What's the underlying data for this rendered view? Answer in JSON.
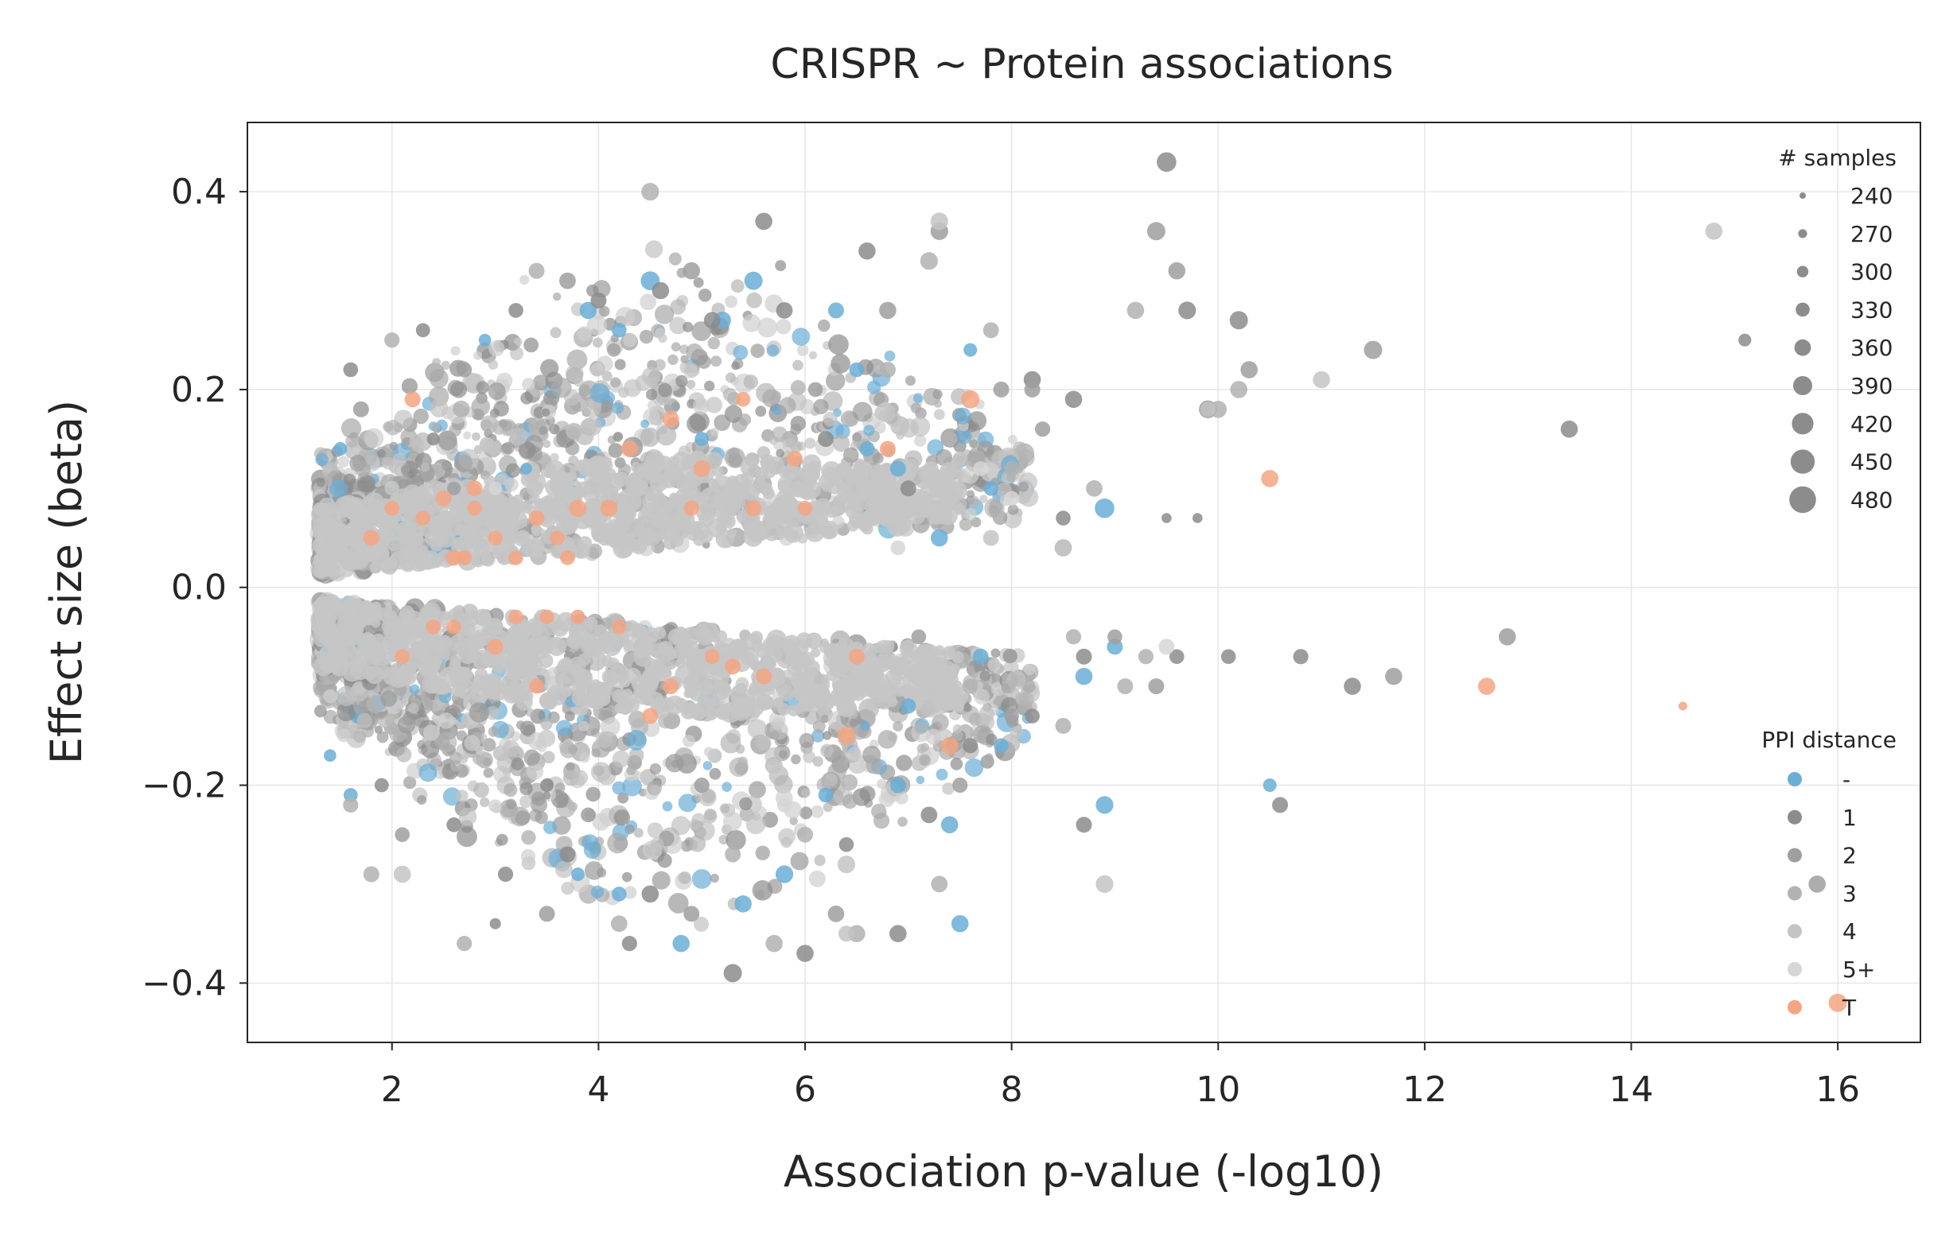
{
  "chart_data": {
    "type": "scatter",
    "title": "CRISPR ~ Protein associations",
    "xlabel": "Association p-value (-log10)",
    "ylabel": "Effect size (beta)",
    "xlim": [
      0.6,
      16.8
    ],
    "ylim": [
      -0.46,
      0.47
    ],
    "x_ticks": [
      2,
      4,
      6,
      8,
      10,
      12,
      14,
      16
    ],
    "y_ticks": [
      -0.4,
      -0.2,
      0.0,
      0.2,
      0.4
    ],
    "x_tick_labels": [
      "2",
      "4",
      "6",
      "8",
      "10",
      "12",
      "14",
      "16"
    ],
    "y_tick_labels": [
      "−0.4",
      "−0.2",
      "0.0",
      "0.2",
      "0.4"
    ],
    "grid": true,
    "size_legend": {
      "title": "# samples",
      "placement": "top-right",
      "entries": [
        {
          "label": "240",
          "value": 240
        },
        {
          "label": "270",
          "value": 270
        },
        {
          "label": "300",
          "value": 300
        },
        {
          "label": "330",
          "value": 330
        },
        {
          "label": "360",
          "value": 360
        },
        {
          "label": "390",
          "value": 390
        },
        {
          "label": "420",
          "value": 420
        },
        {
          "label": "450",
          "value": 450
        },
        {
          "label": "480",
          "value": 480
        }
      ]
    },
    "color_legend": {
      "title": "PPI distance",
      "placement": "bottom-right",
      "entries": [
        {
          "label": "-",
          "color": "#6aaed6"
        },
        {
          "label": "1",
          "color": "#8c8c8c"
        },
        {
          "label": "2",
          "color": "#9f9f9f"
        },
        {
          "label": "3",
          "color": "#b2b2b2"
        },
        {
          "label": "4",
          "color": "#c4c4c4"
        },
        {
          "label": "5+",
          "color": "#d6d6d6"
        },
        {
          "label": "T",
          "color": "#f4a582"
        }
      ]
    },
    "series": [
      {
        "name": "-",
        "color": "#6aaed6",
        "points": [
          [
            3.9,
            0.28,
            420
          ],
          [
            4.5,
            0.31,
            450
          ],
          [
            5.5,
            0.31,
            440
          ],
          [
            6.3,
            0.28,
            400
          ],
          [
            7.6,
            0.24,
            360
          ],
          [
            4.2,
            0.26,
            380
          ],
          [
            2.9,
            0.25,
            340
          ],
          [
            3.3,
            0.12,
            330
          ],
          [
            5.0,
            0.15,
            370
          ],
          [
            6.6,
            0.14,
            390
          ],
          [
            7.3,
            0.05,
            420
          ],
          [
            8.9,
            0.08,
            460
          ],
          [
            9.0,
            -0.06,
            400
          ],
          [
            8.7,
            -0.09,
            420
          ],
          [
            8.9,
            -0.22,
            430
          ],
          [
            10.5,
            -0.2,
            360
          ],
          [
            7.4,
            -0.24,
            420
          ],
          [
            7.5,
            -0.34,
            420
          ],
          [
            6.9,
            -0.2,
            400
          ],
          [
            5.8,
            -0.29,
            430
          ],
          [
            5.4,
            -0.32,
            420
          ],
          [
            4.8,
            -0.36,
            420
          ],
          [
            4.2,
            -0.31,
            380
          ],
          [
            3.8,
            -0.29,
            360
          ],
          [
            6.2,
            -0.21,
            380
          ],
          [
            7.0,
            -0.12,
            390
          ],
          [
            7.7,
            -0.07,
            400
          ],
          [
            1.5,
            0.14,
            360
          ],
          [
            1.6,
            -0.21,
            370
          ],
          [
            1.4,
            -0.17,
            340
          ],
          [
            6.9,
            0.12,
            400
          ],
          [
            7.8,
            0.1,
            380
          ],
          [
            7.9,
            -0.16,
            380
          ],
          [
            5.2,
            0.27,
            420
          ],
          [
            6.5,
            0.22,
            380
          ]
        ]
      },
      {
        "name": "1",
        "color": "#8c8c8c",
        "points": [
          [
            9.5,
            0.43,
            460
          ],
          [
            9.7,
            0.28,
            430
          ],
          [
            10.2,
            0.27,
            440
          ],
          [
            9.9,
            0.18,
            430
          ],
          [
            9.5,
            0.07,
            300
          ],
          [
            9.8,
            0.07,
            300
          ],
          [
            8.6,
            0.19,
            420
          ],
          [
            8.2,
            0.21,
            420
          ],
          [
            6.6,
            0.34,
            420
          ],
          [
            5.6,
            0.37,
            420
          ],
          [
            4.6,
            0.3,
            420
          ],
          [
            5.1,
            0.27,
            410
          ],
          [
            4.0,
            0.29,
            400
          ],
          [
            3.2,
            0.28,
            380
          ],
          [
            2.3,
            0.26,
            370
          ],
          [
            1.6,
            0.22,
            380
          ],
          [
            1.9,
            -0.2,
            370
          ],
          [
            2.6,
            -0.24,
            380
          ],
          [
            3.1,
            -0.29,
            390
          ],
          [
            3.7,
            -0.27,
            400
          ],
          [
            4.5,
            -0.31,
            420
          ],
          [
            5.3,
            -0.39,
            440
          ],
          [
            6.0,
            -0.37,
            420
          ],
          [
            6.9,
            -0.35,
            420
          ],
          [
            7.2,
            -0.23,
            410
          ],
          [
            8.2,
            -0.13,
            380
          ],
          [
            8.7,
            -0.07,
            400
          ],
          [
            9.6,
            -0.07,
            380
          ],
          [
            10.1,
            -0.07,
            380
          ],
          [
            10.8,
            -0.07,
            390
          ],
          [
            11.3,
            -0.1,
            420
          ],
          [
            10.6,
            -0.22,
            400
          ],
          [
            8.7,
            -0.24,
            400
          ],
          [
            15.1,
            0.25,
            350
          ],
          [
            13.4,
            0.16,
            420
          ],
          [
            2.4,
            0.15,
            350
          ],
          [
            3.0,
            -0.34,
            320
          ],
          [
            4.3,
            -0.36,
            390
          ],
          [
            6.4,
            -0.26,
            380
          ],
          [
            7.6,
            -0.16,
            390
          ],
          [
            5.8,
            0.28,
            410
          ],
          [
            6.2,
            0.15,
            400
          ],
          [
            7.0,
            0.1,
            400
          ],
          [
            8.5,
            0.07,
            380
          ],
          [
            3.5,
            -0.2,
            360
          ]
        ]
      },
      {
        "name": "2",
        "color": "#9f9f9f",
        "points": [
          [
            9.4,
            0.36,
            440
          ],
          [
            9.6,
            0.32,
            420
          ],
          [
            10.3,
            0.22,
            420
          ],
          [
            11.5,
            0.24,
            440
          ],
          [
            12.8,
            -0.05,
            420
          ],
          [
            11.7,
            -0.09,
            420
          ],
          [
            9.4,
            -0.1,
            400
          ],
          [
            9.0,
            -0.05,
            380
          ],
          [
            8.2,
            0.2,
            400
          ],
          [
            7.3,
            0.36,
            430
          ],
          [
            6.8,
            0.28,
            420
          ],
          [
            4.9,
            0.32,
            420
          ],
          [
            3.7,
            0.31,
            410
          ],
          [
            2.7,
            0.22,
            390
          ],
          [
            1.7,
            0.18,
            400
          ],
          [
            2.1,
            -0.25,
            380
          ],
          [
            3.5,
            -0.33,
            400
          ],
          [
            4.9,
            -0.33,
            400
          ],
          [
            6.3,
            -0.33,
            410
          ],
          [
            7.5,
            -0.2,
            390
          ],
          [
            8.0,
            -0.13,
            380
          ],
          [
            15.8,
            -0.3,
            420
          ],
          [
            6.1,
            0.2,
            380
          ],
          [
            5.0,
            -0.2,
            390
          ],
          [
            7.1,
            -0.05,
            380
          ],
          [
            7.9,
            0.2,
            400
          ],
          [
            8.3,
            0.16,
            390
          ],
          [
            3.9,
            -0.23,
            380
          ],
          [
            2.6,
            0.1,
            360
          ]
        ]
      },
      {
        "name": "3",
        "color": "#b2b2b2",
        "points": [
          [
            4.5,
            0.4,
            430
          ],
          [
            7.2,
            0.33,
            430
          ],
          [
            9.2,
            0.28,
            420
          ],
          [
            10.0,
            0.18,
            420
          ],
          [
            10.2,
            0.2,
            420
          ],
          [
            7.4,
            0.15,
            400
          ],
          [
            8.0,
            0.12,
            390
          ],
          [
            8.5,
            0.04,
            420
          ],
          [
            8.8,
            0.1,
            410
          ],
          [
            9.1,
            -0.1,
            400
          ],
          [
            9.3,
            -0.07,
            390
          ],
          [
            8.6,
            -0.05,
            390
          ],
          [
            7.3,
            -0.3,
            410
          ],
          [
            6.5,
            -0.35,
            420
          ],
          [
            5.7,
            -0.36,
            420
          ],
          [
            4.2,
            -0.34,
            410
          ],
          [
            2.7,
            -0.36,
            390
          ],
          [
            1.6,
            -0.22,
            390
          ],
          [
            1.8,
            -0.29,
            400
          ],
          [
            7.8,
            0.26,
            400
          ],
          [
            6.8,
            0.22,
            400
          ],
          [
            3.4,
            0.32,
            400
          ],
          [
            2.0,
            0.25,
            390
          ],
          [
            5.3,
            -0.27,
            400
          ],
          [
            6.0,
            -0.25,
            400
          ],
          [
            7.6,
            -0.1,
            390
          ],
          [
            8.5,
            -0.14,
            400
          ]
        ]
      },
      {
        "name": "4",
        "color": "#c4c4c4",
        "points": [
          [
            7.3,
            0.37,
            430
          ],
          [
            11.0,
            0.21,
            420
          ],
          [
            14.8,
            0.36,
            420
          ],
          [
            8.9,
            -0.3,
            430
          ],
          [
            6.4,
            -0.28,
            430
          ],
          [
            6.4,
            -0.35,
            400
          ],
          [
            2.1,
            -0.29,
            420
          ],
          [
            7.5,
            0.13,
            380
          ],
          [
            7.8,
            0.05,
            400
          ],
          [
            7.0,
            -0.07,
            380
          ],
          [
            9.9,
            0.18,
            400
          ],
          [
            8.5,
            0.04,
            400
          ]
        ]
      },
      {
        "name": "5+",
        "color": "#d6d6d6",
        "points": [
          [
            9.5,
            -0.06,
            400
          ],
          [
            8.0,
            0.09,
            380
          ],
          [
            7.7,
            0.12,
            380
          ],
          [
            5.8,
            -0.22,
            380
          ],
          [
            6.9,
            0.04,
            380
          ],
          [
            3.0,
            0.1,
            360
          ]
        ]
      },
      {
        "name": "T",
        "color": "#f4a582",
        "points": [
          [
            7.6,
            0.19,
            440
          ],
          [
            10.5,
            0.11,
            420
          ],
          [
            12.6,
            -0.1,
            420
          ],
          [
            14.5,
            -0.12,
            280
          ],
          [
            16.0,
            -0.42,
            440
          ],
          [
            7.4,
            -0.16,
            420
          ],
          [
            6.4,
            -0.15,
            430
          ],
          [
            6.5,
            -0.07,
            400
          ],
          [
            6.8,
            0.14,
            400
          ],
          [
            5.5,
            0.08,
            400
          ],
          [
            5.9,
            0.13,
            400
          ],
          [
            5.3,
            -0.08,
            400
          ],
          [
            5.0,
            0.12,
            410
          ],
          [
            4.7,
            0.17,
            410
          ],
          [
            4.3,
            0.14,
            410
          ],
          [
            4.1,
            0.08,
            420
          ],
          [
            3.8,
            0.08,
            420
          ],
          [
            3.4,
            0.07,
            400
          ],
          [
            3.6,
            0.05,
            380
          ],
          [
            3.7,
            0.03,
            380
          ],
          [
            3.0,
            0.05,
            380
          ],
          [
            2.8,
            0.08,
            380
          ],
          [
            2.5,
            0.09,
            400
          ],
          [
            2.3,
            0.07,
            380
          ],
          [
            2.2,
            0.19,
            400
          ],
          [
            2.0,
            0.08,
            380
          ],
          [
            1.8,
            0.05,
            400
          ],
          [
            2.6,
            0.03,
            400
          ],
          [
            2.4,
            -0.04,
            380
          ],
          [
            2.6,
            -0.04,
            380
          ],
          [
            3.0,
            -0.06,
            400
          ],
          [
            3.2,
            -0.03,
            380
          ],
          [
            3.5,
            -0.03,
            380
          ],
          [
            3.8,
            -0.03,
            380
          ],
          [
            4.2,
            -0.04,
            380
          ],
          [
            4.5,
            -0.13,
            400
          ],
          [
            4.7,
            -0.1,
            400
          ],
          [
            5.1,
            -0.07,
            380
          ],
          [
            5.6,
            -0.09,
            400
          ],
          [
            3.4,
            -0.1,
            380
          ],
          [
            2.1,
            -0.07,
            380
          ],
          [
            2.8,
            0.1,
            400
          ],
          [
            3.2,
            0.03,
            380
          ],
          [
            4.9,
            0.08,
            390
          ],
          [
            5.4,
            0.19,
            380
          ],
          [
            6.0,
            0.08,
            380
          ],
          [
            2.7,
            0.03,
            380
          ]
        ]
      }
    ]
  }
}
